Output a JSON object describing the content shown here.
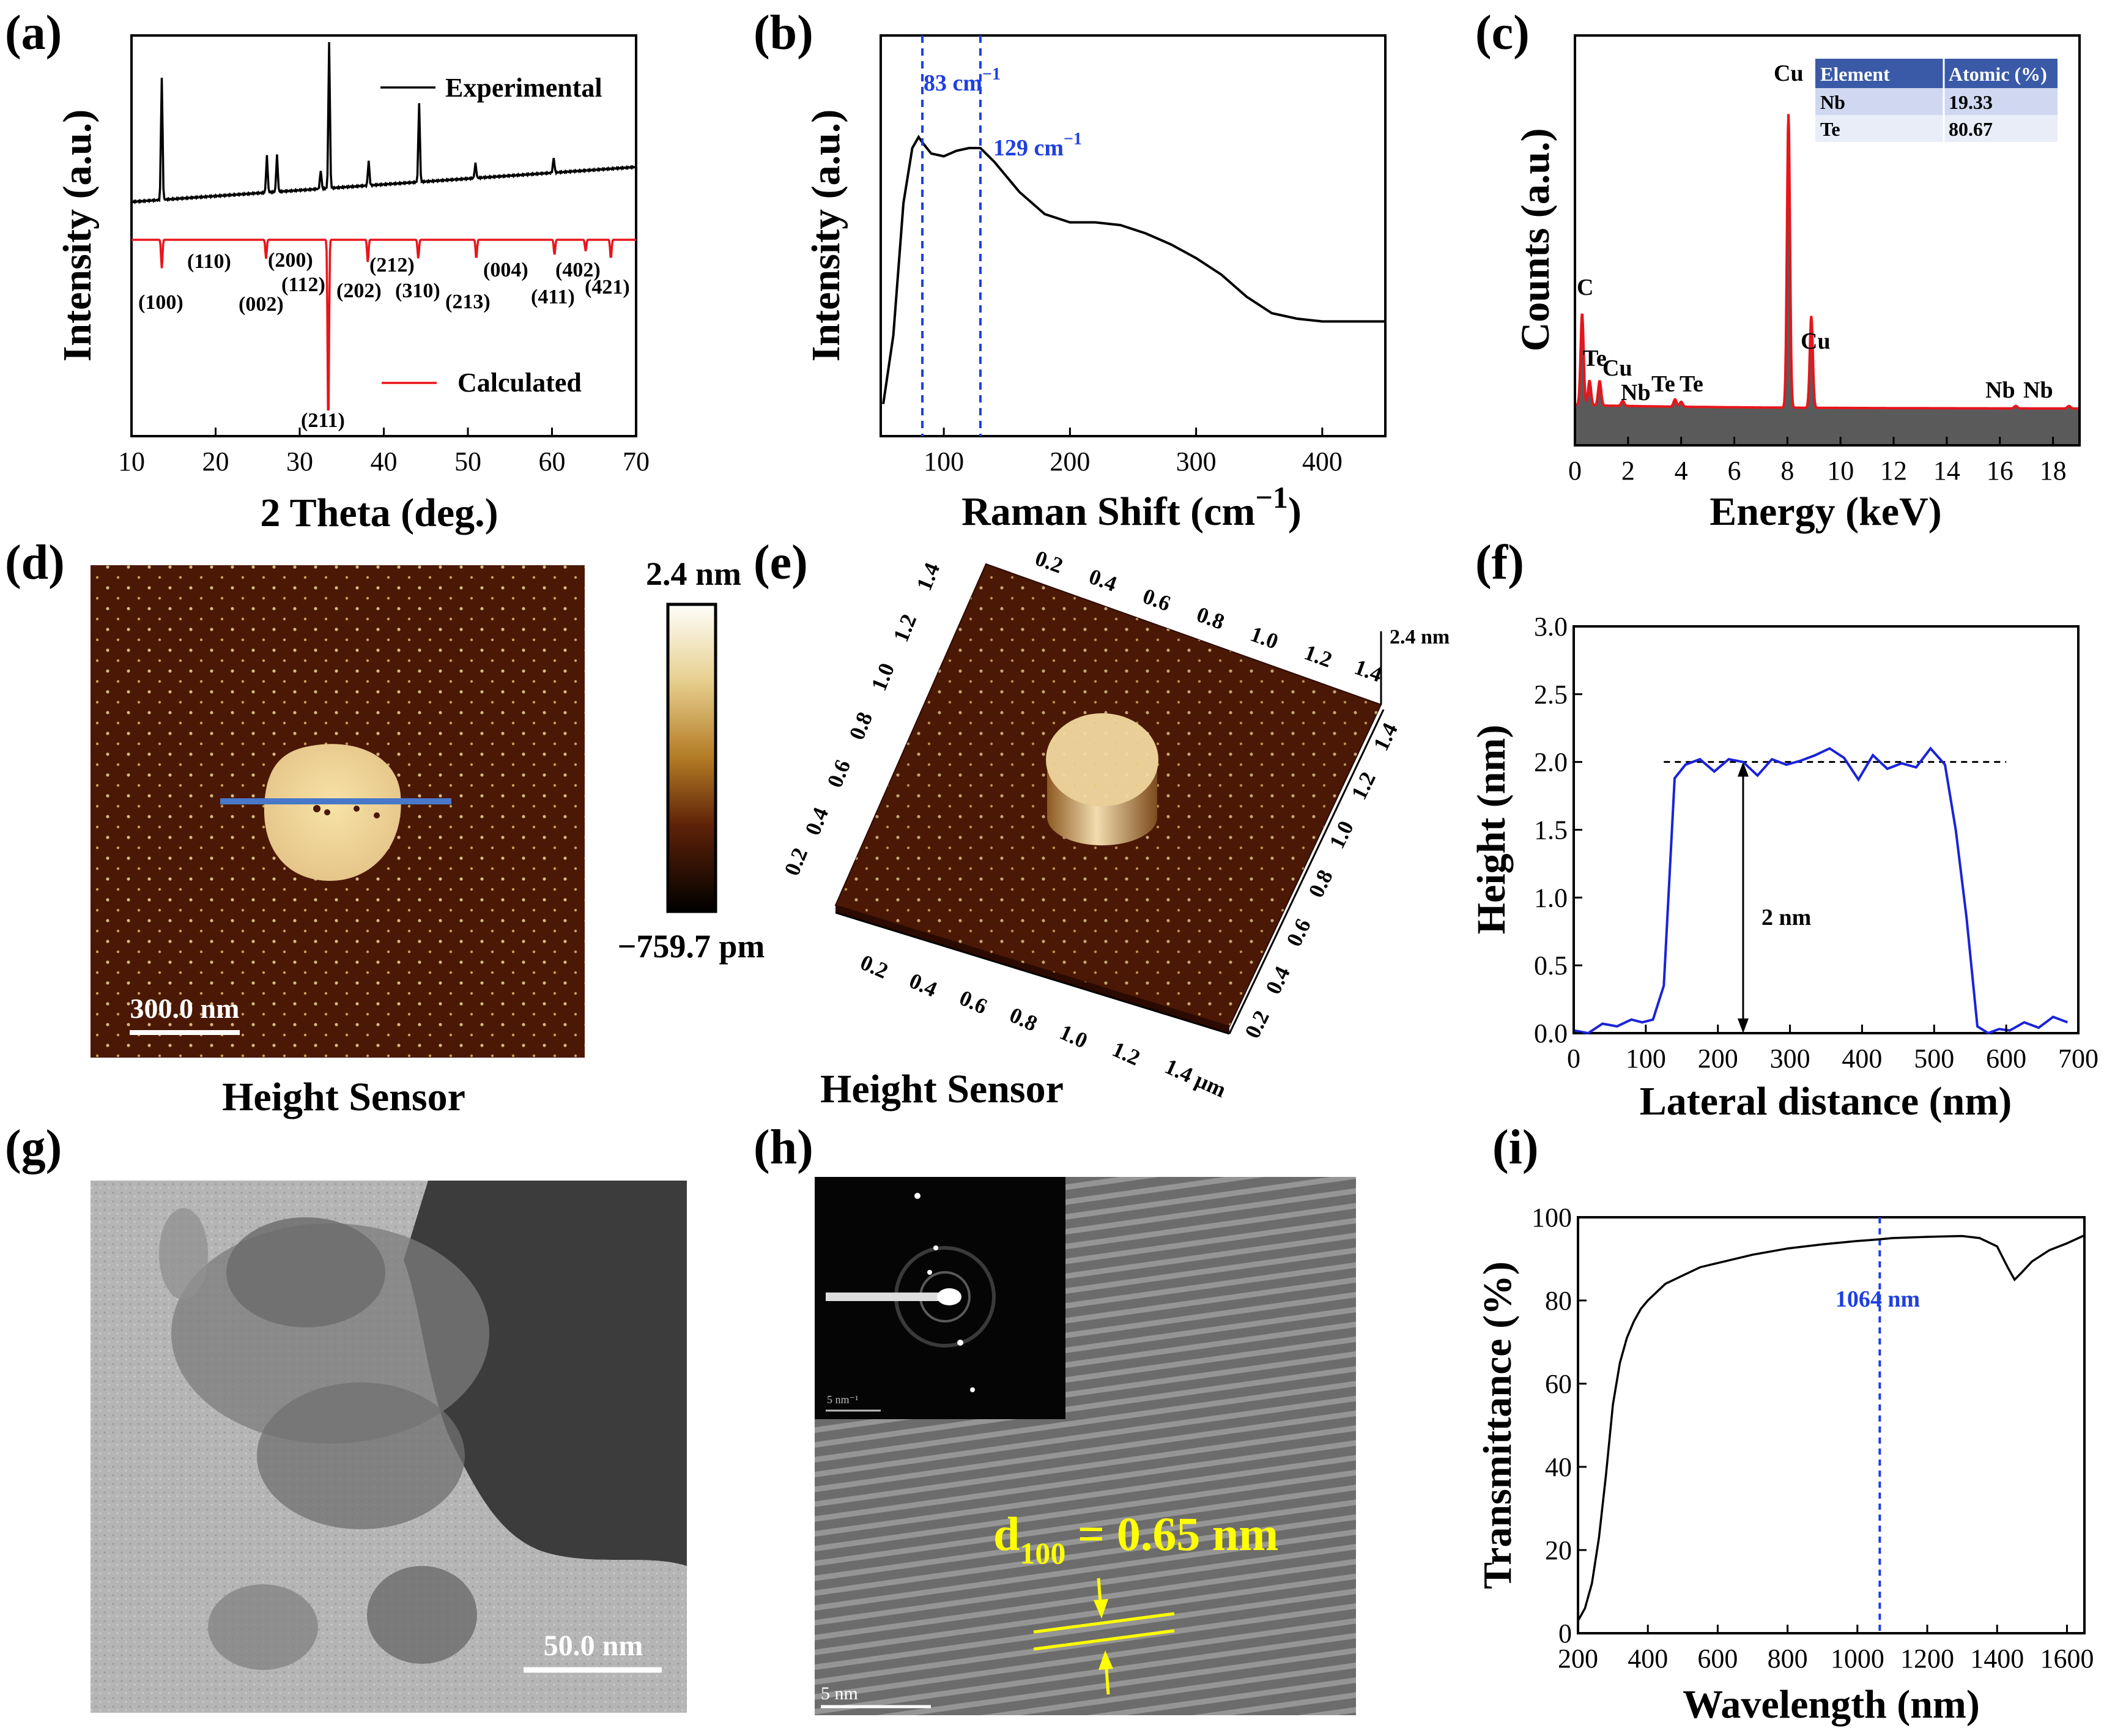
{
  "panels": [
    {
      "id": "a",
      "label": "(a)"
    },
    {
      "id": "b",
      "label": "(b)"
    },
    {
      "id": "c",
      "label": "(c)"
    },
    {
      "id": "d",
      "label": "(d)"
    },
    {
      "id": "e",
      "label": "(e)"
    },
    {
      "id": "f",
      "label": "(f)"
    },
    {
      "id": "g",
      "label": "(g)"
    },
    {
      "id": "h",
      "label": "(h)"
    },
    {
      "id": "i",
      "label": "(i)"
    }
  ],
  "colors": {
    "experimental": "#000000",
    "calculated": "#e8151b",
    "dashed_blue": "#1f3fe0",
    "profile_blue": "#1a23d8",
    "eds_red": "#e8151b",
    "eds_fill": "#5a5a5a",
    "yellow": "#ffff00"
  },
  "chart_data": [
    {
      "panel": "a",
      "type": "line",
      "title": "",
      "xlabel": "2 Theta (deg.)",
      "ylabel": "Intensity (a.u.)",
      "xlim": [
        10,
        70
      ],
      "xticks": [
        10,
        20,
        30,
        40,
        50,
        60,
        70
      ],
      "series": [
        {
          "name": "Experimental",
          "peaks": [
            [
              13.6,
              10
            ],
            [
              26.1,
              3
            ],
            [
              27.3,
              3
            ],
            [
              32.5,
              1.5
            ],
            [
              33.5,
              12
            ],
            [
              38.2,
              2
            ],
            [
              44.2,
              6.5
            ],
            [
              50.9,
              1.2
            ],
            [
              60.2,
              1.2
            ]
          ]
        },
        {
          "name": "Calculated",
          "peaks": [
            [
              13.6,
              1.5
            ],
            [
              26.0,
              1.0
            ],
            [
              33.4,
              10
            ],
            [
              38.1,
              1.2
            ],
            [
              44.1,
              1.0
            ],
            [
              51.0,
              1.0
            ],
            [
              60.3,
              0.8
            ],
            [
              64.0,
              0.6
            ],
            [
              67.0,
              1.0
            ]
          ]
        }
      ],
      "legend": [
        "Experimental",
        "Calculated"
      ],
      "hkl": [
        "(100)",
        "(110)",
        "(002)",
        "(200)",
        "(112)",
        "(211)",
        "(202)",
        "(212)",
        "(310)",
        "(213)",
        "(004)",
        "(411)",
        "(402)",
        "(421)"
      ]
    },
    {
      "panel": "b",
      "type": "line",
      "xlabel": "Raman Shift (cm",
      "xlabel_sup": "−1",
      "ylabel": "Intensity (a.u.)",
      "xlim": [
        50,
        450
      ],
      "xticks": [
        100,
        200,
        300,
        400
      ],
      "peaks": [
        83,
        129
      ],
      "annotations": [
        "83 cm",
        "129 cm"
      ],
      "ann_sup": "−1",
      "x": [
        52,
        60,
        68,
        75,
        80,
        83,
        90,
        100,
        110,
        120,
        129,
        140,
        160,
        180,
        200,
        220,
        240,
        260,
        280,
        300,
        320,
        340,
        360,
        380,
        400,
        420,
        450
      ],
      "y": [
        0.05,
        0.3,
        0.78,
        0.98,
        1.02,
        1.0,
        0.96,
        0.95,
        0.97,
        0.98,
        0.98,
        0.93,
        0.82,
        0.74,
        0.71,
        0.71,
        0.7,
        0.67,
        0.63,
        0.58,
        0.52,
        0.44,
        0.38,
        0.36,
        0.35,
        0.35,
        0.35
      ]
    },
    {
      "panel": "c",
      "type": "line",
      "xlabel": "Energy (keV)",
      "ylabel": "Counts (a.u.)",
      "xlim": [
        0,
        19
      ],
      "xticks": [
        0,
        2,
        4,
        6,
        8,
        10,
        12,
        14,
        16,
        18
      ],
      "peak_labels": [
        "C",
        "Te",
        "Cu",
        "Nb",
        "Te",
        "Te",
        "Cu",
        "Cu",
        "Nb",
        "Nb"
      ],
      "table": {
        "headers": [
          "Element",
          "Atomic (%)"
        ],
        "rows": [
          [
            "Nb",
            "19.33"
          ],
          [
            "Te",
            "80.67"
          ]
        ]
      }
    },
    {
      "panel": "f",
      "type": "line",
      "xlabel": "Lateral distance (nm)",
      "ylabel": "Height (nm)",
      "xlim": [
        0,
        700
      ],
      "ylim": [
        0,
        3.0
      ],
      "xticks": [
        0,
        100,
        200,
        300,
        400,
        500,
        600,
        700
      ],
      "yticks": [
        "0.0",
        "0.5",
        "1.0",
        "1.5",
        "2.0",
        "2.5",
        "3.0"
      ],
      "x": [
        0,
        20,
        40,
        60,
        80,
        95,
        110,
        125,
        140,
        155,
        175,
        195,
        215,
        235,
        255,
        275,
        295,
        315,
        335,
        355,
        375,
        395,
        415,
        435,
        455,
        475,
        495,
        515,
        530,
        545,
        560,
        575,
        590,
        605,
        625,
        645,
        665,
        685
      ],
      "y": [
        0.02,
        0.0,
        0.07,
        0.05,
        0.1,
        0.08,
        0.1,
        0.35,
        1.88,
        1.98,
        2.02,
        1.93,
        2.02,
        2.0,
        1.9,
        2.02,
        1.98,
        2.01,
        2.05,
        2.1,
        2.03,
        1.87,
        2.05,
        1.95,
        1.99,
        1.96,
        2.1,
        1.98,
        1.5,
        0.85,
        0.05,
        0.0,
        0.03,
        0.02,
        0.08,
        0.04,
        0.12,
        0.08
      ],
      "ref_height": 2.0,
      "annotation": "2 nm"
    },
    {
      "panel": "i",
      "type": "line",
      "xlabel": "Wavelength (nm)",
      "ylabel": "Transmittance (%)",
      "xlim": [
        200,
        1650
      ],
      "ylim": [
        0,
        100
      ],
      "xticks": [
        200,
        400,
        600,
        800,
        1000,
        1200,
        1400,
        1600
      ],
      "yticks": [
        0,
        20,
        40,
        60,
        80,
        100
      ],
      "x": [
        200,
        220,
        240,
        260,
        280,
        300,
        320,
        340,
        360,
        380,
        400,
        450,
        500,
        550,
        600,
        700,
        800,
        900,
        1000,
        1064,
        1100,
        1200,
        1300,
        1350,
        1400,
        1430,
        1450,
        1470,
        1500,
        1550,
        1600,
        1650
      ],
      "y": [
        3,
        6,
        12,
        23,
        38,
        55,
        65,
        71,
        75,
        78,
        80,
        84,
        86,
        88,
        89,
        91,
        92.5,
        93.5,
        94.3,
        94.7,
        95,
        95.3,
        95.5,
        95,
        93,
        88,
        85,
        87,
        90,
        92,
        93,
        95
      ],
      "marker": 1064,
      "annotation": "1064 nm"
    }
  ],
  "afm_d": {
    "colorbar_max": "2.4 nm",
    "colorbar_min": "−759.7 pm",
    "scalebar": "300.0 nm",
    "caption": "Height Sensor"
  },
  "afm_e": {
    "caption": "Height Sensor",
    "z_label": "2.4 nm",
    "top_ticks": [
      "0.2",
      "0.4",
      "0.6",
      "0.8",
      "1.0",
      "1.2",
      "1.4"
    ],
    "left_ticks": [
      "1.4",
      "1.2",
      "1.0",
      "0.8",
      "0.6",
      "0.4",
      "0.2"
    ],
    "bottom_ticks": [
      "0.2",
      "0.4",
      "0.6",
      "0.8",
      "1.0",
      "1.2",
      "1.4 µm"
    ],
    "right_ticks": [
      "1.4",
      "1.2",
      "1.0",
      "0.8",
      "0.6",
      "0.4",
      "0.2"
    ]
  },
  "tem_g": {
    "scalebar": "50.0 nm"
  },
  "hrtem_h": {
    "d_label": "d",
    "d_sub": "100",
    "d_value": " = 0.65 nm",
    "scalebar": "5 nm",
    "inset_scalebar": "5 nm⁻¹"
  }
}
